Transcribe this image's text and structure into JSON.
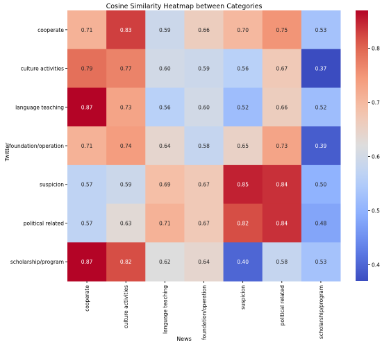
{
  "chart_data": {
    "type": "heatmap",
    "title": "Cosine Similarity Heatmap between Categories",
    "xlabel": "News",
    "ylabel": "Twitter",
    "x_categories": [
      "cooperate",
      "culture activities",
      "language teaching",
      "foundation/operation",
      "suspicion",
      "political related",
      "scholarship/program"
    ],
    "y_categories": [
      "cooperate",
      "culture activities",
      "language teaching",
      "foundation/operation",
      "suspicion",
      "political related",
      "scholarship/program"
    ],
    "values": [
      [
        0.71,
        0.83,
        0.59,
        0.66,
        0.7,
        0.75,
        0.53
      ],
      [
        0.79,
        0.77,
        0.6,
        0.59,
        0.56,
        0.67,
        0.37
      ],
      [
        0.87,
        0.73,
        0.56,
        0.6,
        0.52,
        0.66,
        0.52
      ],
      [
        0.71,
        0.74,
        0.64,
        0.58,
        0.65,
        0.73,
        0.39
      ],
      [
        0.57,
        0.59,
        0.69,
        0.67,
        0.85,
        0.84,
        0.5
      ],
      [
        0.57,
        0.63,
        0.71,
        0.67,
        0.82,
        0.84,
        0.48
      ],
      [
        0.87,
        0.82,
        0.62,
        0.64,
        0.4,
        0.58,
        0.53
      ]
    ],
    "colormap": "coolwarm",
    "colorbar": {
      "vmin": 0.37,
      "vmax": 0.87,
      "ticks": [
        0.4,
        0.5,
        0.6,
        0.7,
        0.8
      ],
      "tick_labels": [
        "0.4",
        "0.5",
        "0.6",
        "0.7",
        "0.8"
      ]
    },
    "annotations": true,
    "grid": false
  }
}
